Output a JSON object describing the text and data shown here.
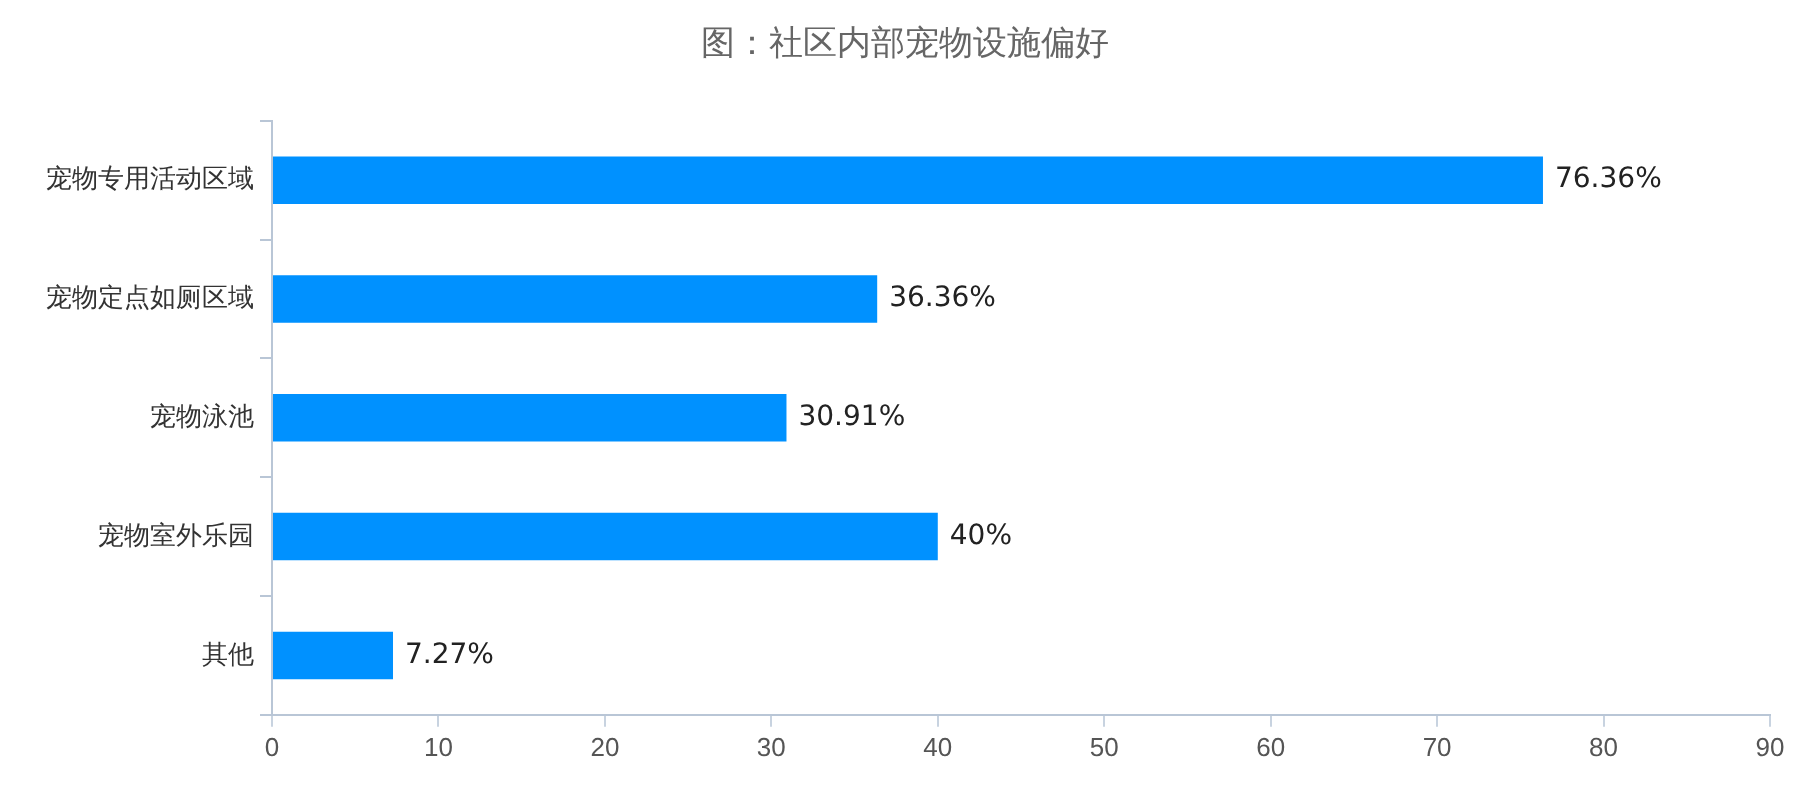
{
  "chart_data": {
    "type": "bar",
    "orientation": "horizontal",
    "title": "图：社区内部宠物设施偏好",
    "categories": [
      "宠物专用活动区域",
      "宠物定点如厕区域",
      "宠物泳池",
      "宠物室外乐园",
      "其他"
    ],
    "values": [
      76.36,
      36.36,
      30.91,
      40,
      7.27
    ],
    "value_labels": [
      "76.36%",
      "36.36%",
      "30.91%",
      "40%",
      "7.27%"
    ],
    "color": "#0091ff",
    "xlim": [
      0,
      90
    ],
    "xticks": [
      0,
      10,
      20,
      30,
      40,
      50,
      60,
      70,
      80,
      90
    ],
    "grid": false
  }
}
